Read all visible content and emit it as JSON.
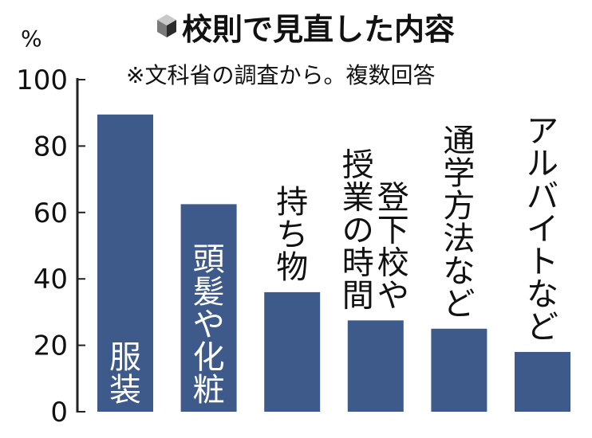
{
  "title": "校則で見直した内容",
  "subtitle": "※文科省の調査から。複数回答",
  "icon": "cube-icon",
  "colors": {
    "bar": "#3d5a8a",
    "axis": "#222222",
    "label_inside": "#ffffff",
    "label_outside": "#111111"
  },
  "chart_data": {
    "type": "bar",
    "unit": "%",
    "categories": [
      "服装",
      "頭髪や化粧",
      "持ち物",
      "登下校や授業の時間",
      "通学方法など",
      "アルバイトなど"
    ],
    "category_lines": [
      [
        "服装"
      ],
      [
        "頭髪や化粧"
      ],
      [
        "持ち物"
      ],
      [
        "授業の時間",
        "登下校や"
      ],
      [
        "通学方法など"
      ],
      [
        "アルバイトなど"
      ]
    ],
    "values": [
      89.5,
      62.5,
      36,
      27.5,
      25,
      18
    ],
    "ylim": [
      0,
      100
    ],
    "yticks": [
      0,
      20,
      40,
      60,
      80,
      100
    ],
    "title": "校則で見直した内容",
    "xlabel": "",
    "ylabel": "%",
    "grid": false,
    "legend": "none"
  }
}
